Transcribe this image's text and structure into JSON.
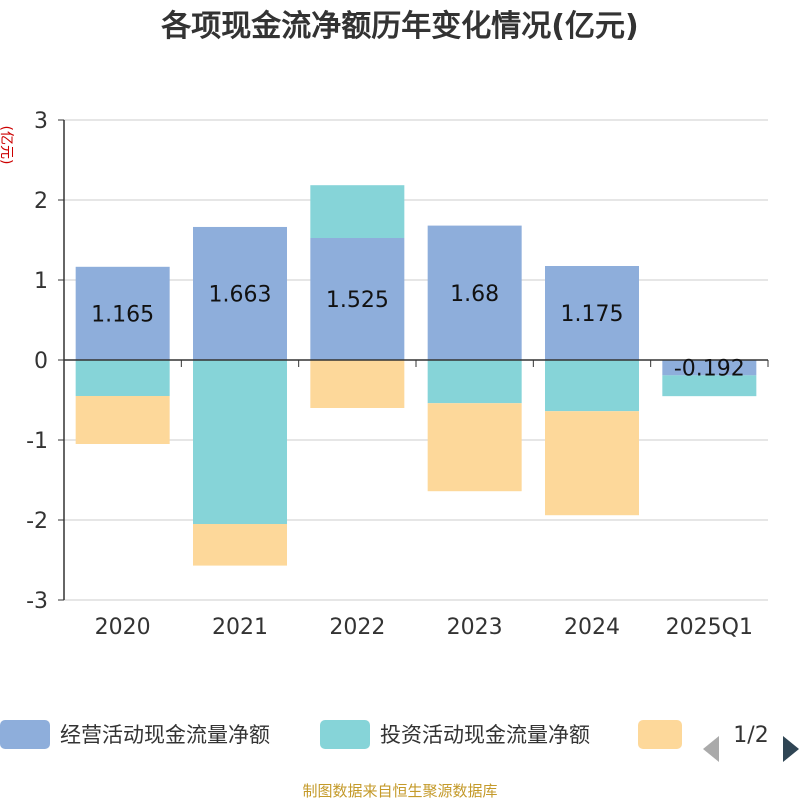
{
  "chart_data": {
    "type": "bar",
    "stacked": true,
    "title": "各项现金流净额历年变化情况(亿元)",
    "ylabel": "(亿元)",
    "ylim": [
      -3,
      3
    ],
    "yticks": [
      3,
      2,
      1,
      0,
      -1,
      -2,
      -3
    ],
    "categories": [
      "2020",
      "2021",
      "2022",
      "2023",
      "2024",
      "2025Q1"
    ],
    "series": [
      {
        "name": "经营活动现金流量净额",
        "color": "#8eaedb",
        "values": [
          1.165,
          1.663,
          1.525,
          1.68,
          1.175,
          -0.192
        ],
        "labels": [
          "1.165",
          "1.663",
          "1.525",
          "1.68",
          "1.175",
          "-0.192"
        ]
      },
      {
        "name": "投资活动现金流量净额",
        "color": "#86d4d8",
        "values": [
          -0.45,
          -2.05,
          0.66,
          -0.54,
          -0.64,
          -0.26
        ]
      },
      {
        "name": "",
        "color": "#fdd89a",
        "values": [
          -0.6,
          -0.52,
          -0.6,
          -1.1,
          -1.3,
          0
        ]
      }
    ]
  },
  "legend": {
    "items": [
      "经营活动现金流量净额",
      "投资活动现金流量净额",
      ""
    ],
    "page": "1/2"
  },
  "source": "制图数据来自恒生聚源数据库"
}
